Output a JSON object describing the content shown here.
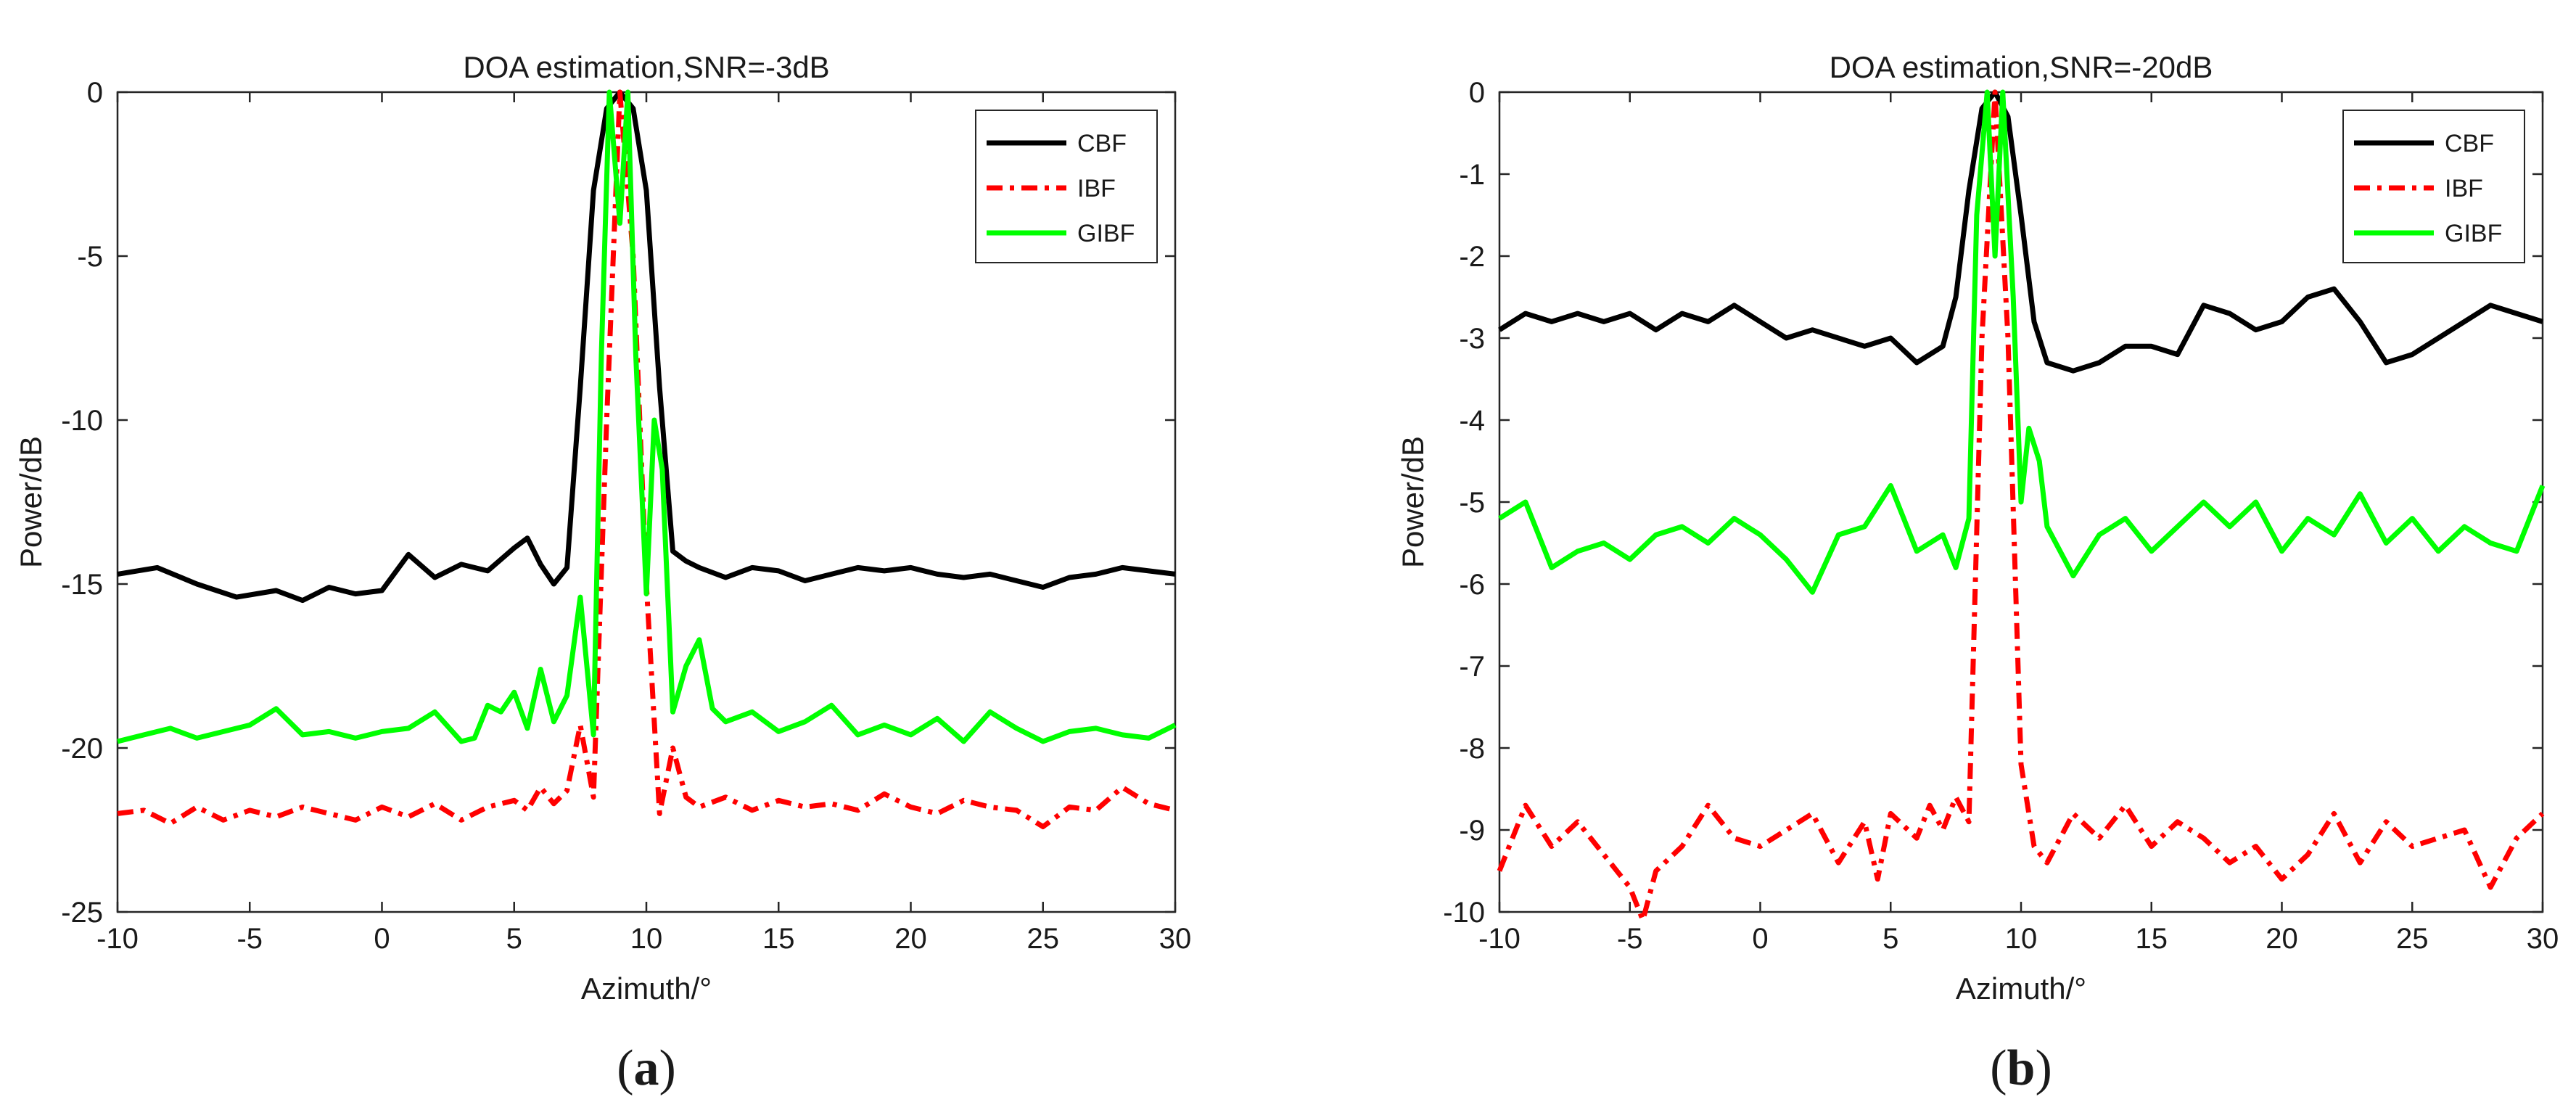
{
  "colors": {
    "CBF": "#000000",
    "IBF": "#ff0000",
    "GIBF": "#00ff00"
  },
  "chart_data": [
    {
      "type": "line",
      "title": "DOA estimation,SNR=-3dB",
      "xlabel": "Azimuth/°",
      "ylabel": "Power/dB",
      "xlim": [
        -10,
        30
      ],
      "ylim": [
        -25,
        0
      ],
      "xticks": [
        "-10",
        "-5",
        "0",
        "5",
        "10",
        "15",
        "20",
        "25",
        "30"
      ],
      "yticks": [
        "0",
        "-5",
        "-10",
        "-15",
        "-20",
        "-25"
      ],
      "panel_label": {
        "open": "(",
        "letter": "a",
        "close": ")"
      },
      "legend": [
        "CBF",
        "IBF",
        "GIBF"
      ],
      "series": [
        {
          "name": "CBF",
          "style": "solid",
          "x": [
            -10,
            -8.5,
            -7,
            -5.5,
            -4,
            -3,
            -2,
            -1,
            0,
            1,
            2,
            3,
            4,
            5,
            5.5,
            6,
            6.5,
            7,
            7.5,
            8,
            8.5,
            9,
            9.5,
            10,
            10.5,
            11,
            11.5,
            12,
            13,
            14,
            15,
            16,
            17,
            18,
            19,
            20,
            21,
            22,
            23,
            24,
            25,
            26,
            27,
            28,
            29,
            30
          ],
          "y": [
            -14.7,
            -14.5,
            -15,
            -15.4,
            -15.2,
            -15.5,
            -15.1,
            -15.3,
            -15.2,
            -14.1,
            -14.8,
            -14.4,
            -14.6,
            -13.9,
            -13.6,
            -14.4,
            -15,
            -14.5,
            -9,
            -3,
            -0.5,
            0,
            -0.5,
            -3,
            -9,
            -14,
            -14.3,
            -14.5,
            -14.8,
            -14.5,
            -14.6,
            -14.9,
            -14.7,
            -14.5,
            -14.6,
            -14.5,
            -14.7,
            -14.8,
            -14.7,
            -14.9,
            -15.1,
            -14.8,
            -14.7,
            -14.5,
            -14.6,
            -14.7
          ]
        },
        {
          "name": "IBF",
          "style": "dashdot",
          "x": [
            -10,
            -9,
            -8,
            -7,
            -6,
            -5,
            -4,
            -3,
            -2,
            -1,
            0,
            1,
            2,
            3,
            4,
            5,
            5.5,
            6,
            6.5,
            7,
            7.5,
            8,
            8.5,
            9,
            9.5,
            10,
            10.5,
            11,
            11.5,
            12,
            13,
            14,
            15,
            16,
            17,
            18,
            19,
            20,
            21,
            22,
            23,
            24,
            25,
            26,
            27,
            28,
            29,
            30
          ],
          "y": [
            -22,
            -21.9,
            -22.3,
            -21.8,
            -22.2,
            -21.9,
            -22.1,
            -21.8,
            -22,
            -22.2,
            -21.8,
            -22.1,
            -21.7,
            -22.2,
            -21.8,
            -21.6,
            -21.9,
            -21.2,
            -21.7,
            -21.3,
            -19.3,
            -21.5,
            -10,
            0,
            -5,
            -15,
            -22,
            -20,
            -21.5,
            -21.8,
            -21.5,
            -21.9,
            -21.6,
            -21.8,
            -21.7,
            -21.9,
            -21.4,
            -21.8,
            -22,
            -21.6,
            -21.8,
            -21.9,
            -22.4,
            -21.8,
            -21.9,
            -21.2,
            -21.7,
            -21.9
          ]
        },
        {
          "name": "GIBF",
          "style": "solid",
          "x": [
            -10,
            -9,
            -8,
            -7,
            -6,
            -5,
            -4,
            -3,
            -2,
            -1,
            0,
            1,
            2,
            3,
            3.5,
            4,
            4.5,
            5,
            5.5,
            6,
            6.5,
            7,
            7.5,
            8,
            8.3,
            8.6,
            9,
            9.3,
            9.6,
            10,
            10.3,
            10.6,
            11,
            11.5,
            12,
            12.5,
            13,
            14,
            15,
            16,
            17,
            18,
            19,
            20,
            21,
            22,
            23,
            24,
            25,
            26,
            27,
            28,
            29,
            30
          ],
          "y": [
            -19.8,
            -19.6,
            -19.4,
            -19.7,
            -19.5,
            -19.3,
            -18.8,
            -19.6,
            -19.5,
            -19.7,
            -19.5,
            -19.4,
            -18.9,
            -19.8,
            -19.7,
            -18.7,
            -18.9,
            -18.3,
            -19.4,
            -17.6,
            -19.2,
            -18.4,
            -15.4,
            -19.6,
            -8,
            0,
            -4,
            0,
            -8,
            -15.3,
            -10,
            -11.5,
            -18.9,
            -17.5,
            -16.7,
            -18.8,
            -19.2,
            -18.9,
            -19.5,
            -19.2,
            -18.7,
            -19.6,
            -19.3,
            -19.6,
            -19.1,
            -19.8,
            -18.9,
            -19.4,
            -19.8,
            -19.5,
            -19.4,
            -19.6,
            -19.7,
            -19.3
          ]
        }
      ]
    },
    {
      "type": "line",
      "title": "DOA estimation,SNR=-20dB",
      "xlabel": "Azimuth/°",
      "ylabel": "Power/dB",
      "xlim": [
        -10,
        30
      ],
      "ylim": [
        -10,
        0
      ],
      "xticks": [
        "-10",
        "-5",
        "0",
        "5",
        "10",
        "15",
        "20",
        "25",
        "30"
      ],
      "yticks": [
        "0",
        "-1",
        "-2",
        "-3",
        "-4",
        "-5",
        "-6",
        "-7",
        "-8",
        "-9",
        "-10"
      ],
      "panel_label": {
        "open": "(",
        "letter": "b",
        "close": ")"
      },
      "legend": [
        "CBF",
        "IBF",
        "GIBF"
      ],
      "series": [
        {
          "name": "CBF",
          "style": "solid",
          "x": [
            -10,
            -9,
            -8,
            -7,
            -6,
            -5,
            -4,
            -3,
            -2,
            -1,
            0,
            1,
            2,
            3,
            4,
            5,
            6,
            7,
            7.5,
            8,
            8.5,
            9,
            9.5,
            10,
            10.5,
            11,
            12,
            13,
            14,
            15,
            16,
            17,
            18,
            19,
            20,
            21,
            22,
            23,
            24,
            25,
            26,
            27,
            28,
            29,
            30
          ],
          "y": [
            -2.9,
            -2.7,
            -2.8,
            -2.7,
            -2.8,
            -2.7,
            -2.9,
            -2.7,
            -2.8,
            -2.6,
            -2.8,
            -3,
            -2.9,
            -3,
            -3.1,
            -3,
            -3.3,
            -3.1,
            -2.5,
            -1.2,
            -0.2,
            0,
            -0.3,
            -1.5,
            -2.8,
            -3.3,
            -3.4,
            -3.3,
            -3.1,
            -3.1,
            -3.2,
            -2.6,
            -2.7,
            -2.9,
            -2.8,
            -2.5,
            -2.4,
            -2.8,
            -3.3,
            -3.2,
            -3,
            -2.8,
            -2.6,
            -2.7,
            -2.8
          ]
        },
        {
          "name": "IBF",
          "style": "dashdot",
          "x": [
            -10,
            -9,
            -8,
            -7,
            -6,
            -5,
            -4.5,
            -4,
            -3,
            -2,
            -1,
            0,
            1,
            2,
            3,
            4,
            4.5,
            5,
            6,
            6.5,
            7,
            7.5,
            8,
            8.5,
            9,
            9.5,
            10,
            10.5,
            11,
            12,
            13,
            14,
            15,
            16,
            17,
            18,
            19,
            20,
            21,
            22,
            23,
            24,
            25,
            26,
            27,
            28,
            29,
            30
          ],
          "y": [
            -9.5,
            -8.7,
            -9.2,
            -8.9,
            -9.3,
            -9.7,
            -10.1,
            -9.5,
            -9.2,
            -8.7,
            -9.1,
            -9.2,
            -9,
            -8.8,
            -9.4,
            -8.9,
            -9.6,
            -8.8,
            -9.1,
            -8.7,
            -9,
            -8.6,
            -8.9,
            -3,
            0,
            -3,
            -8.2,
            -9.2,
            -9.4,
            -8.8,
            -9.1,
            -8.7,
            -9.2,
            -8.9,
            -9.1,
            -9.4,
            -9.2,
            -9.6,
            -9.3,
            -8.8,
            -9.4,
            -8.9,
            -9.2,
            -9.1,
            -9,
            -9.7,
            -9.1,
            -8.8
          ]
        },
        {
          "name": "GIBF",
          "style": "solid",
          "x": [
            -10,
            -9,
            -8,
            -7,
            -6,
            -5,
            -4,
            -3,
            -2,
            -1,
            0,
            1,
            2,
            3,
            4,
            5,
            6,
            7,
            7.5,
            8,
            8.3,
            8.7,
            9,
            9.3,
            9.7,
            10,
            10.3,
            10.7,
            11,
            12,
            13,
            14,
            15,
            16,
            17,
            18,
            19,
            20,
            21,
            22,
            23,
            24,
            25,
            26,
            27,
            28,
            29,
            30
          ],
          "y": [
            -5.2,
            -5,
            -5.8,
            -5.6,
            -5.5,
            -5.7,
            -5.4,
            -5.3,
            -5.5,
            -5.2,
            -5.4,
            -5.7,
            -6.1,
            -5.4,
            -5.3,
            -4.8,
            -5.6,
            -5.4,
            -5.8,
            -5.2,
            -1.5,
            0,
            -2,
            0,
            -2.5,
            -5,
            -4.1,
            -4.5,
            -5.3,
            -5.9,
            -5.4,
            -5.2,
            -5.6,
            -5.3,
            -5,
            -5.3,
            -5,
            -5.6,
            -5.2,
            -5.4,
            -4.9,
            -5.5,
            -5.2,
            -5.6,
            -5.3,
            -5.5,
            -5.6,
            -4.8
          ]
        }
      ]
    }
  ]
}
